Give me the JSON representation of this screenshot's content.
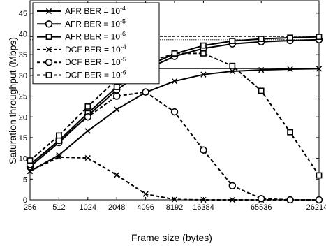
{
  "chart_data": {
    "type": "line",
    "title": "",
    "xlabel": "Frame size (bytes)",
    "ylabel": "Saturation throughput (Mbps)",
    "x_scale": "log2",
    "x": [
      256,
      512,
      1024,
      2048,
      4096,
      8192,
      16384,
      32768,
      65536,
      131072,
      262144
    ],
    "x_tick_labels": [
      "256",
      "512",
      "1024",
      "2048",
      "4096",
      "8192",
      "16384",
      "65536",
      "262144"
    ],
    "x_tick_values": [
      256,
      512,
      1024,
      2048,
      4096,
      8192,
      16384,
      65536,
      262144
    ],
    "y_ticks": [
      0,
      5,
      10,
      15,
      20,
      25,
      30,
      35,
      40,
      45
    ],
    "ylim": [
      0,
      48
    ],
    "grid": false,
    "legend_placement": "top-left",
    "reference_lines": [
      {
        "y": 31.6,
        "style": "solid"
      },
      {
        "y": 38.6,
        "style": "dotted"
      },
      {
        "y": 39.3,
        "style": "dashed"
      }
    ],
    "series": [
      {
        "name": "AFR BER = 10",
        "exp": "-4",
        "marker": "x",
        "dash": "solid",
        "values": [
          6.9,
          10.8,
          16.6,
          21.8,
          25.9,
          28.6,
          30.2,
          31.0,
          31.3,
          31.5,
          31.6
        ]
      },
      {
        "name": "AFR BER = 10",
        "exp": "-5",
        "marker": "o",
        "dash": "solid",
        "values": [
          8.0,
          13.8,
          20.3,
          26.5,
          31.4,
          34.6,
          36.5,
          37.6,
          38.1,
          38.4,
          38.6
        ]
      },
      {
        "name": "AFR BER = 10",
        "exp": "-6",
        "marker": "s",
        "dash": "solid",
        "values": [
          8.5,
          14.3,
          20.9,
          27.2,
          32.1,
          35.2,
          37.2,
          38.3,
          38.8,
          39.1,
          39.3
        ]
      },
      {
        "name": "DCF BER = 10",
        "exp": "-4",
        "marker": "x",
        "dash": "dashed",
        "values": [
          6.9,
          10.3,
          10.1,
          6.0,
          1.4,
          0.1,
          0.0,
          0.0,
          0.0,
          0.0,
          0.0
        ]
      },
      {
        "name": "DCF BER = 10",
        "exp": "-5",
        "marker": "o",
        "dash": "dashed",
        "values": [
          8.5,
          14.3,
          20.0,
          25.0,
          26.0,
          21.2,
          12.0,
          3.4,
          0.3,
          0.0,
          0.0
        ]
      },
      {
        "name": "DCF BER = 10",
        "exp": "-6",
        "marker": "s",
        "dash": "dashed",
        "values": [
          9.5,
          15.5,
          22.5,
          29.0,
          33.0,
          35.3,
          35.3,
          32.3,
          26.3,
          16.3,
          5.9
        ]
      }
    ]
  }
}
